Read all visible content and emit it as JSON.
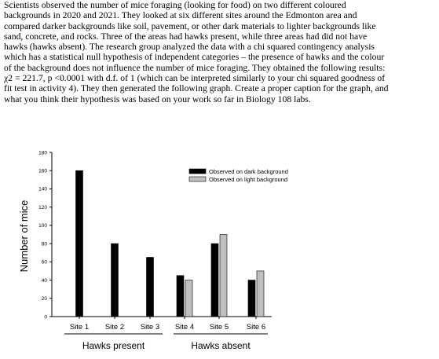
{
  "question": {
    "lines": [
      "Scientists observed the number of mice foraging (looking for food) on two different coloured",
      "backgrounds in 2020 and 2021. They looked at six different sites around the Edmonton area and",
      "compared darker backgrounds like soil, pavement, or other dark materials to lighter backgrounds like",
      "sand, concrete, and rocks. Three of the areas had hawks present, while three areas had did not have",
      "hawks (hawks absent). The research group analyzed the data with a chi squared contingency analysis",
      "which has a statistical null hypothesis of independent categories – the presence of hawks and the colour",
      "of the background does not influence the number of mice foraging. They obtained the following results:",
      "χ2 = 221.7, p <0.0001 with d.f. of 1 (which can be interpreted similarly to your chi squared goodness of",
      "fit test in activity 4). They then generated the following graph. Create a proper caption for the graph, and",
      "what you think their hypothesis was based on your work so far in Biology 108 labs."
    ]
  },
  "chart_data": {
    "type": "bar",
    "ylabel": "Number of mice",
    "ylim": [
      0,
      180
    ],
    "yticks": [
      0,
      20,
      40,
      60,
      80,
      100,
      120,
      140,
      160,
      180
    ],
    "categories": [
      "Site 1",
      "Site 2",
      "Site 3",
      "Site 4",
      "Site 5",
      "Site 6"
    ],
    "groups": [
      {
        "label": "Hawks present",
        "sites": [
          "Site 1",
          "Site 2",
          "Site 3"
        ]
      },
      {
        "label": "Hawks absent",
        "sites": [
          "Site 4",
          "Site 5",
          "Site 6"
        ]
      }
    ],
    "series": [
      {
        "name": "Observed on dark background",
        "color": "#000000",
        "values": [
          160,
          80,
          65,
          45,
          80,
          40
        ]
      },
      {
        "name": "Observed on light background",
        "color": "#c0c0c0",
        "values": [
          null,
          null,
          null,
          40,
          90,
          50
        ]
      }
    ],
    "legend_position": "top-right",
    "grid": false
  }
}
